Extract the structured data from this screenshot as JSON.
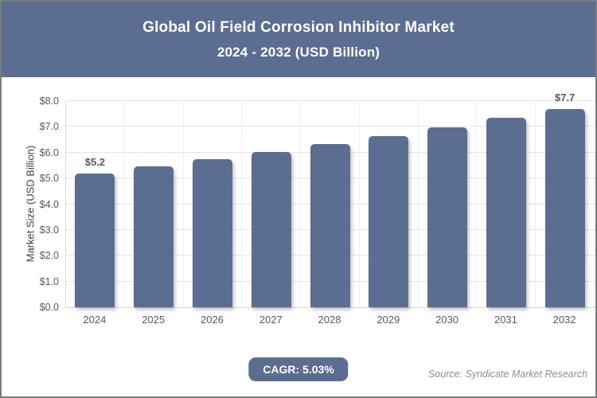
{
  "colors": {
    "accent": "#5C6D92",
    "frame_border": "#7B7B7B",
    "gridline": "#E5E5E5",
    "axis_text": "#595959"
  },
  "header": {
    "title": "Global Oil Field Corrosion Inhibitor Market",
    "subtitle": "2024 - 2032 (USD Billion)"
  },
  "chart_data": {
    "type": "bar",
    "title": "Global Oil Field Corrosion Inhibitor Market",
    "subtitle": "2024 - 2032 (USD Billion)",
    "categories": [
      "2024",
      "2025",
      "2026",
      "2027",
      "2028",
      "2029",
      "2030",
      "2031",
      "2032"
    ],
    "values": [
      5.2,
      5.46,
      5.74,
      6.03,
      6.33,
      6.65,
      6.99,
      7.34,
      7.7
    ],
    "bar_value_labels": {
      "2024": "$5.2",
      "2032": "$7.7"
    },
    "xlabel": "",
    "ylabel": "Market Size (USD Billion)",
    "ylim": [
      0,
      8
    ],
    "ytick_labels": [
      "$0.0",
      "$1.0",
      "$2.0",
      "$3.0",
      "$4.0",
      "$5.0",
      "$6.0",
      "$7.0",
      "$8.0"
    ],
    "grid": true,
    "legend": false,
    "bar_color": "#5C6D92"
  },
  "footer": {
    "cagr_label": "CAGR: 5.03%",
    "source": "Source: Syndicate Market Research"
  }
}
